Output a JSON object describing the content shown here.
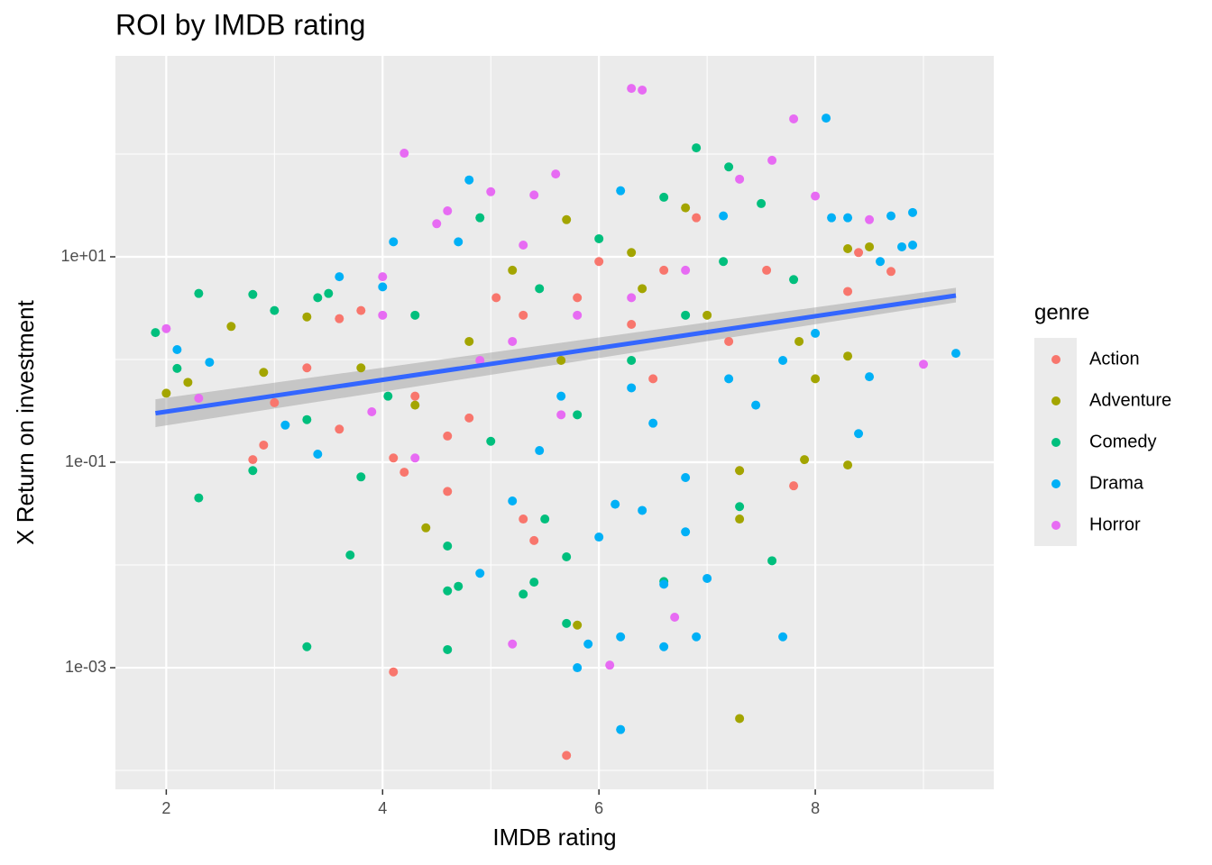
{
  "chart_data": {
    "type": "scatter",
    "title": "ROI by IMDB rating",
    "x_label": "IMDB rating",
    "y_label": "X Return on investment",
    "log_y": true,
    "grid": true,
    "xlim": [
      1.53,
      9.65
    ],
    "ylim": [
      6.55e-05,
      904
    ],
    "xticks": [
      2,
      4,
      6,
      8
    ],
    "yticks": [
      {
        "value": 0.001,
        "label": "1e-03"
      },
      {
        "value": 0.1,
        "label": "1e-01"
      },
      {
        "value": 10,
        "label": "1e+01"
      }
    ],
    "legend_title": "genre",
    "legend_position": "right",
    "series": [
      {
        "name": "Action",
        "color": "#F8766D",
        "x": [
          5.7,
          4.1,
          5.3,
          5.4,
          2.8,
          2.9,
          3.0,
          3.3,
          3.6,
          3.6,
          4.1,
          4.2,
          4.6,
          4.6,
          4.8,
          7.8,
          7.3,
          8.4,
          8.7,
          6.9,
          8.3,
          6.3,
          5.8,
          5.3,
          6.5,
          7.2,
          6.0,
          5.05,
          3.8,
          4.3,
          7.55,
          6.6
        ],
        "y": [
          0.00014,
          0.00091,
          0.028,
          0.0173,
          0.106,
          0.147,
          0.38,
          0.83,
          0.21,
          2.5,
          0.11,
          0.08,
          0.052,
          0.18,
          0.27,
          0.059,
          0.083,
          11,
          7.2,
          24,
          4.6,
          2.2,
          4.0,
          2.7,
          0.65,
          1.5,
          9.0,
          4.0,
          3.0,
          0.44,
          7.4,
          7.4
        ]
      },
      {
        "name": "Adventure",
        "color": "#A3A500",
        "x": [
          7.3,
          5.8,
          4.4,
          7.3,
          8.3,
          7.9,
          7.3,
          2.0,
          2.2,
          2.6,
          2.9,
          3.3,
          3.8,
          5.7,
          8.5,
          8.3,
          6.8,
          6.3,
          5.2,
          6.4,
          4.8,
          7.0,
          5.65,
          7.85,
          8.0,
          8.3,
          4.3
        ],
        "y": [
          0.00032,
          0.0026,
          0.023,
          0.083,
          0.094,
          0.106,
          0.028,
          0.47,
          0.6,
          2.1,
          0.75,
          2.6,
          0.83,
          23,
          12.5,
          12,
          30,
          11,
          7.4,
          4.9,
          1.5,
          2.7,
          0.98,
          1.5,
          0.65,
          1.08,
          0.36
        ]
      },
      {
        "name": "Comedy",
        "color": "#00BF7D",
        "x": [
          6.9,
          7.2,
          7.5,
          6.6,
          4.9,
          1.9,
          2.3,
          2.8,
          3.0,
          3.4,
          3.5,
          2.1,
          2.3,
          2.8,
          3.3,
          3.3,
          3.7,
          3.8,
          4.6,
          4.6,
          4.7,
          4.6,
          5.3,
          5.4,
          5.7,
          5.7,
          6.6,
          7.6,
          7.3,
          5.5,
          5.0,
          5.8,
          6.3,
          6.8,
          5.45,
          6.0,
          7.15,
          7.8,
          4.3,
          4.05
        ],
        "y": [
          115,
          75,
          33,
          38,
          24,
          1.83,
          4.4,
          4.3,
          3.0,
          4.0,
          4.4,
          0.82,
          0.045,
          0.083,
          0.26,
          0.0016,
          0.0125,
          0.072,
          0.0153,
          0.0056,
          0.0062,
          0.0015,
          0.0052,
          0.0068,
          0.0027,
          0.012,
          0.0069,
          0.011,
          0.037,
          0.028,
          0.16,
          0.29,
          0.98,
          2.7,
          4.9,
          15,
          9.0,
          6.0,
          2.7,
          0.44
        ]
      },
      {
        "name": "Drama",
        "color": "#00B0F6",
        "x": [
          8.1,
          4.8,
          6.2,
          4.1,
          4.7,
          3.6,
          4.0,
          2.1,
          2.4,
          3.1,
          3.4,
          4.9,
          5.2,
          5.8,
          5.9,
          6.2,
          6.2,
          6.6,
          6.9,
          7.7,
          7.0,
          6.6,
          9.3,
          8.9,
          8.9,
          8.8,
          8.7,
          8.4,
          8.5,
          8.6,
          8.15,
          8.3,
          7.15,
          6.5,
          6.8,
          6.15,
          5.45,
          7.45,
          7.7,
          6.3,
          7.2,
          5.65,
          6.0,
          6.4,
          6.8,
          8.0
        ],
        "y": [
          224,
          56,
          44,
          14,
          14,
          6.4,
          5.1,
          1.25,
          0.94,
          0.23,
          0.12,
          0.0083,
          0.042,
          0.001,
          0.0017,
          0.00025,
          0.002,
          0.0016,
          0.002,
          0.002,
          0.0074,
          0.0065,
          1.15,
          27,
          13,
          12.5,
          25,
          0.19,
          0.68,
          9.0,
          24,
          24,
          25,
          0.24,
          0.071,
          0.039,
          0.13,
          0.36,
          0.98,
          0.53,
          0.65,
          0.44,
          0.0187,
          0.034,
          0.021,
          1.8
        ]
      },
      {
        "name": "Horror",
        "color": "#E76BF3",
        "x": [
          6.3,
          6.4,
          7.8,
          4.2,
          7.6,
          5.6,
          5.0,
          5.4,
          8.0,
          4.6,
          4.5,
          5.3,
          2.0,
          2.3,
          3.9,
          4.3,
          5.2,
          6.1,
          6.7,
          9.0,
          8.5,
          7.3,
          4.0,
          4.0,
          5.8,
          6.3,
          5.2,
          6.8,
          4.9,
          5.65
        ],
        "y": [
          436,
          420,
          220,
          102,
          87,
          64,
          43,
          40,
          39,
          28,
          21,
          13,
          2.0,
          0.42,
          0.31,
          0.11,
          0.0017,
          0.00106,
          0.0031,
          0.9,
          23,
          57,
          6.4,
          2.7,
          2.7,
          4.0,
          1.5,
          7.4,
          0.98,
          0.29
        ]
      }
    ],
    "trend": {
      "color": "#3366FF",
      "x": [
        1.9,
        9.3
      ],
      "y": [
        0.3,
        4.2
      ],
      "lower": [
        0.22,
        3.6
      ],
      "upper": [
        0.41,
        5.0
      ]
    }
  }
}
